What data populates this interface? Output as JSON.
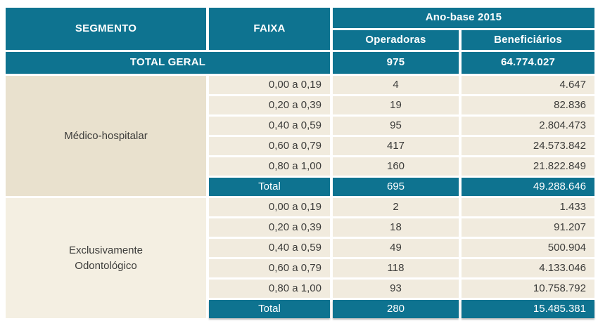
{
  "header": {
    "segmento": "SEGMENTO",
    "faixa": "FAIXA",
    "ano_base": "Ano-base 2015",
    "operadoras": "Operadoras",
    "beneficiarios": "Beneficiários"
  },
  "total_geral": {
    "label": "TOTAL GERAL",
    "operadoras": "975",
    "beneficiarios": "64.774.027"
  },
  "segments": [
    {
      "name": "Médico-hospitalar",
      "rows": [
        {
          "faixa": "0,00 a 0,19",
          "operadoras": "4",
          "beneficiarios": "4.647"
        },
        {
          "faixa": "0,20 a 0,39",
          "operadoras": "19",
          "beneficiarios": "82.836"
        },
        {
          "faixa": "0,40 a 0,59",
          "operadoras": "95",
          "beneficiarios": "2.804.473"
        },
        {
          "faixa": "0,60 a 0,79",
          "operadoras": "417",
          "beneficiarios": "24.573.842"
        },
        {
          "faixa": "0,80 a 1,00",
          "operadoras": "160",
          "beneficiarios": "21.822.849"
        }
      ],
      "total": {
        "label": "Total",
        "operadoras": "695",
        "beneficiarios": "49.288.646"
      }
    },
    {
      "name": "Exclusivamente\nOdontológico",
      "rows": [
        {
          "faixa": "0,00 a 0,19",
          "operadoras": "2",
          "beneficiarios": "1.433"
        },
        {
          "faixa": "0,20 a 0,39",
          "operadoras": "18",
          "beneficiarios": "91.207"
        },
        {
          "faixa": "0,40 a 0,59",
          "operadoras": "49",
          "beneficiarios": "500.904"
        },
        {
          "faixa": "0,60 a 0,79",
          "operadoras": "118",
          "beneficiarios": "4.133.046"
        },
        {
          "faixa": "0,80 a 1,00",
          "operadoras": "93",
          "beneficiarios": "10.758.792"
        }
      ],
      "total": {
        "label": "Total",
        "operadoras": "280",
        "beneficiarios": "15.485.381"
      }
    }
  ],
  "colors": {
    "teal": "#0e7390",
    "row_bg": "#f1ebde",
    "segment_1_bg": "#e9e1ce",
    "segment_2_bg": "#f4efe2",
    "text": "#3c3c3a"
  },
  "chart_data": {
    "type": "table",
    "columns": [
      "SEGMENTO",
      "FAIXA",
      "Ano-base 2015 — Operadoras",
      "Ano-base 2015 — Beneficiários"
    ],
    "rows": [
      [
        "TOTAL GERAL",
        "",
        "975",
        "64.774.027"
      ],
      [
        "Médico-hospitalar",
        "0,00 a 0,19",
        "4",
        "4.647"
      ],
      [
        "Médico-hospitalar",
        "0,20 a 0,39",
        "19",
        "82.836"
      ],
      [
        "Médico-hospitalar",
        "0,40 a 0,59",
        "95",
        "2.804.473"
      ],
      [
        "Médico-hospitalar",
        "0,60 a 0,79",
        "417",
        "24.573.842"
      ],
      [
        "Médico-hospitalar",
        "0,80 a 1,00",
        "160",
        "21.822.849"
      ],
      [
        "Médico-hospitalar",
        "Total",
        "695",
        "49.288.646"
      ],
      [
        "Exclusivamente Odontológico",
        "0,00 a 0,19",
        "2",
        "1.433"
      ],
      [
        "Exclusivamente Odontológico",
        "0,20 a 0,39",
        "18",
        "91.207"
      ],
      [
        "Exclusivamente Odontológico",
        "0,40 a 0,59",
        "49",
        "500.904"
      ],
      [
        "Exclusivamente Odontológico",
        "0,60 a 0,79",
        "118",
        "4.133.046"
      ],
      [
        "Exclusivamente Odontológico",
        "0,80 a 1,00",
        "93",
        "10.758.792"
      ],
      [
        "Exclusivamente Odontológico",
        "Total",
        "280",
        "15.485.381"
      ]
    ]
  }
}
